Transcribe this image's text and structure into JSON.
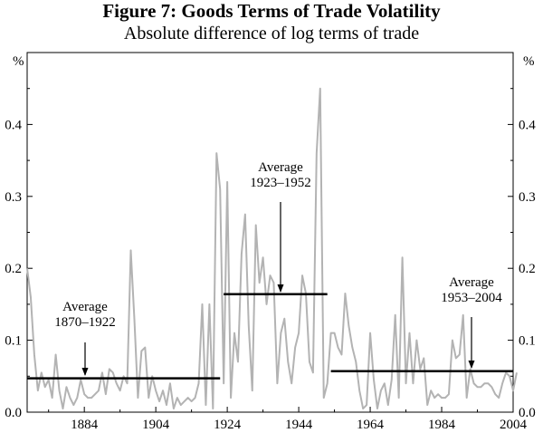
{
  "chart_data": {
    "type": "line",
    "title": "Figure 7: Goods Terms of Trade Volatility",
    "subtitle": "Absolute difference of log terms of trade",
    "ylabel_left": "%",
    "ylabel_right": "%",
    "xlim": [
      1868,
      2004
    ],
    "ylim": [
      0.0,
      0.5
    ],
    "x_ticks": [
      1884,
      1904,
      1924,
      1944,
      1964,
      1984,
      2004
    ],
    "y_ticks": [
      "0.0",
      "0.1",
      "0.2",
      "0.3",
      "0.4"
    ],
    "y_tick_values": [
      0.0,
      0.1,
      0.2,
      0.3,
      0.4
    ],
    "series_color": "#b3b3b3",
    "average_color": "#000000",
    "series": [
      {
        "name": "Absolute difference of log terms of trade",
        "x_start": 1868,
        "values": [
          0.2,
          0.16,
          0.08,
          0.03,
          0.055,
          0.035,
          0.045,
          0.02,
          0.08,
          0.03,
          0.005,
          0.035,
          0.02,
          0.01,
          0.02,
          0.045,
          0.025,
          0.02,
          0.02,
          0.025,
          0.03,
          0.055,
          0.025,
          0.06,
          0.055,
          0.04,
          0.03,
          0.05,
          0.04,
          0.225,
          0.13,
          0.02,
          0.085,
          0.09,
          0.02,
          0.05,
          0.03,
          0.015,
          0.03,
          0.01,
          0.04,
          0.005,
          0.02,
          0.01,
          0.015,
          0.02,
          0.015,
          0.02,
          0.04,
          0.15,
          0.01,
          0.15,
          0.005,
          0.36,
          0.31,
          0.04,
          0.32,
          0.02,
          0.11,
          0.07,
          0.22,
          0.275,
          0.12,
          0.03,
          0.26,
          0.18,
          0.215,
          0.15,
          0.19,
          0.18,
          0.04,
          0.11,
          0.13,
          0.07,
          0.04,
          0.09,
          0.11,
          0.19,
          0.165,
          0.07,
          0.055,
          0.36,
          0.45,
          0.02,
          0.04,
          0.11,
          0.11,
          0.09,
          0.08,
          0.165,
          0.12,
          0.09,
          0.07,
          0.03,
          0.005,
          0.01,
          0.11,
          0.045,
          0.005,
          0.03,
          0.04,
          0.01,
          0.045,
          0.135,
          0.02,
          0.215,
          0.04,
          0.11,
          0.04,
          0.1,
          0.06,
          0.075,
          0.01,
          0.03,
          0.02,
          0.025,
          0.02,
          0.02,
          0.025,
          0.1,
          0.075,
          0.08,
          0.135,
          0.02,
          0.06,
          0.04,
          0.035,
          0.035,
          0.04,
          0.04,
          0.035,
          0.025,
          0.02,
          0.04,
          0.055,
          0.05,
          0.03,
          0.055
        ]
      }
    ],
    "averages": [
      {
        "label_line1": "Average",
        "label_line2": "1870–1922",
        "start": 1868,
        "end": 1922,
        "value": 0.047
      },
      {
        "label_line1": "Average",
        "label_line2": "1923–1952",
        "start": 1923,
        "end": 1952,
        "value": 0.164
      },
      {
        "label_line1": "Average",
        "label_line2": "1953–2004",
        "start": 1953,
        "end": 2004,
        "value": 0.057
      }
    ]
  }
}
